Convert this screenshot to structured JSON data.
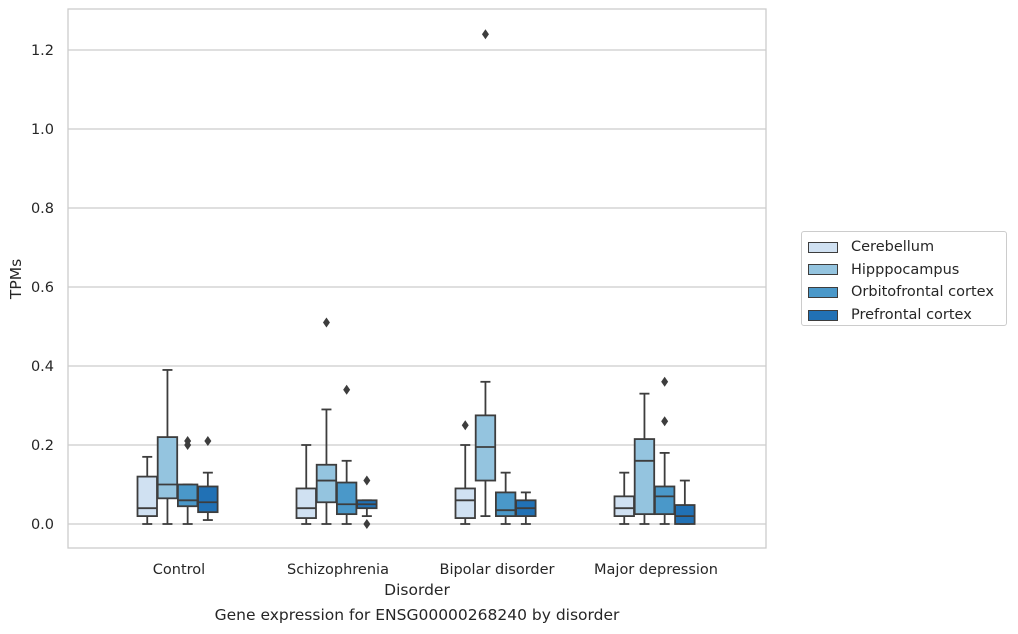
{
  "caption": "Gene expression for ENSG00000268240 by disorder",
  "chart_data": {
    "type": "boxplot",
    "title": "",
    "xlabel": "Disorder",
    "ylabel": "TPMs",
    "ylim": [
      -0.06,
      1.31
    ],
    "yticks": [
      0.0,
      0.2,
      0.4,
      0.6,
      0.8,
      1.0,
      1.2
    ],
    "ytick_labels": [
      "0.0",
      "0.2",
      "0.4",
      "0.6",
      "0.8",
      "1.0",
      "1.2"
    ],
    "grid": "horizontal",
    "legend_position": "right, outside",
    "categories": [
      "Control",
      "Schizophrenia",
      "Bipolar disorder",
      "Major depression"
    ],
    "series": [
      {
        "name": "Cerebellum",
        "color": "#d0e1f2",
        "boxes": [
          {
            "whislo": 0.0,
            "q1": 0.02,
            "med": 0.04,
            "q3": 0.12,
            "whishi": 0.17,
            "fliers": []
          },
          {
            "whislo": 0.0,
            "q1": 0.015,
            "med": 0.04,
            "q3": 0.09,
            "whishi": 0.2,
            "fliers": []
          },
          {
            "whislo": 0.0,
            "q1": 0.015,
            "med": 0.06,
            "q3": 0.09,
            "whishi": 0.2,
            "fliers": [
              0.25
            ]
          },
          {
            "whislo": 0.0,
            "q1": 0.02,
            "med": 0.04,
            "q3": 0.07,
            "whishi": 0.13,
            "fliers": []
          }
        ]
      },
      {
        "name": "Hipppocampus",
        "color": "#94c4df",
        "boxes": [
          {
            "whislo": 0.0,
            "q1": 0.065,
            "med": 0.1,
            "q3": 0.22,
            "whishi": 0.39,
            "fliers": []
          },
          {
            "whislo": 0.0,
            "q1": 0.055,
            "med": 0.11,
            "q3": 0.15,
            "whishi": 0.29,
            "fliers": [
              0.51
            ]
          },
          {
            "whislo": 0.02,
            "q1": 0.11,
            "med": 0.195,
            "q3": 0.275,
            "whishi": 0.36,
            "fliers": [
              1.24
            ]
          },
          {
            "whislo": 0.0,
            "q1": 0.025,
            "med": 0.16,
            "q3": 0.215,
            "whishi": 0.33,
            "fliers": []
          }
        ]
      },
      {
        "name": "Orbitofrontal cortex",
        "color": "#4a98c9",
        "boxes": [
          {
            "whislo": 0.0,
            "q1": 0.045,
            "med": 0.06,
            "q3": 0.1,
            "whishi": 0.1,
            "fliers": [
              0.2,
              0.21
            ]
          },
          {
            "whislo": 0.0,
            "q1": 0.025,
            "med": 0.05,
            "q3": 0.105,
            "whishi": 0.16,
            "fliers": [
              0.34
            ]
          },
          {
            "whislo": 0.0,
            "q1": 0.02,
            "med": 0.035,
            "q3": 0.08,
            "whishi": 0.13,
            "fliers": []
          },
          {
            "whislo": 0.0,
            "q1": 0.025,
            "med": 0.07,
            "q3": 0.095,
            "whishi": 0.18,
            "fliers": [
              0.26,
              0.36
            ]
          }
        ]
      },
      {
        "name": "Prefrontal cortex",
        "color": "#2171b5",
        "boxes": [
          {
            "whislo": 0.01,
            "q1": 0.03,
            "med": 0.055,
            "q3": 0.095,
            "whishi": 0.13,
            "fliers": [
              0.21
            ]
          },
          {
            "whislo": 0.02,
            "q1": 0.04,
            "med": 0.05,
            "q3": 0.06,
            "whishi": 0.06,
            "fliers": [
              0.0,
              0.11
            ]
          },
          {
            "whislo": 0.0,
            "q1": 0.02,
            "med": 0.04,
            "q3": 0.06,
            "whishi": 0.08,
            "fliers": []
          },
          {
            "whislo": 0.0,
            "q1": 0.0,
            "med": 0.02,
            "q3": 0.048,
            "whishi": 0.11,
            "fliers": []
          }
        ]
      }
    ]
  }
}
